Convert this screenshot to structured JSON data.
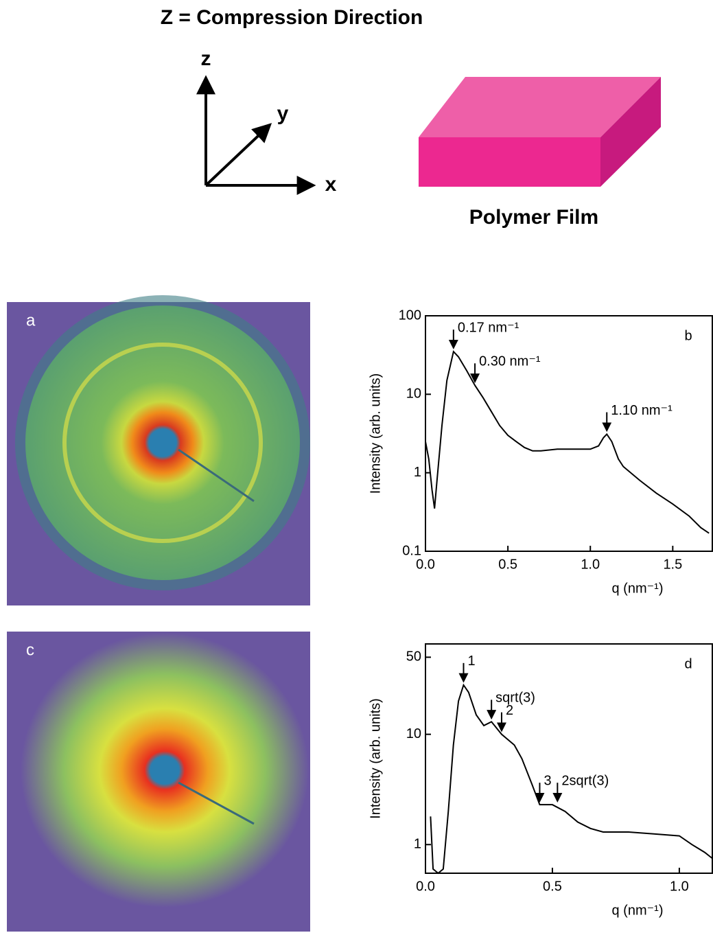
{
  "header": {
    "title": "Z = Compression Direction",
    "axis_z": "z",
    "axis_y": "y",
    "axis_x": "x",
    "film_label": "Polymer Film"
  },
  "images": [
    {
      "label": "a"
    },
    {
      "label": "c"
    }
  ],
  "chart_data": [
    {
      "type": "line",
      "panel": "b",
      "y_label": "Intensity (arb. units)",
      "x_label": "q (nm⁻¹)",
      "log_y": true,
      "color": "#000000",
      "x": [
        0,
        0.02,
        0.04,
        0.055,
        0.07,
        0.1,
        0.13,
        0.17,
        0.2,
        0.25,
        0.3,
        0.35,
        0.4,
        0.45,
        0.5,
        0.55,
        0.6,
        0.65,
        0.7,
        0.8,
        0.9,
        1.0,
        1.05,
        1.08,
        1.1,
        1.13,
        1.17,
        1.2,
        1.3,
        1.4,
        1.5,
        1.6,
        1.67,
        1.72
      ],
      "values": [
        2.5,
        1.5,
        0.6,
        0.35,
        0.8,
        4,
        15,
        35,
        30,
        20,
        13,
        9,
        6,
        4,
        3,
        2.5,
        2.1,
        1.9,
        1.9,
        2.0,
        2.0,
        2.0,
        2.2,
        2.8,
        3.1,
        2.5,
        1.5,
        1.2,
        0.8,
        0.55,
        0.4,
        0.28,
        0.2,
        0.17
      ],
      "xlim": [
        0,
        1.74
      ],
      "ylim": [
        0.1,
        100
      ],
      "xticks": [
        {
          "value": 0,
          "label": "0.0"
        },
        0.5,
        {
          "value": 1,
          "label": "1.0"
        },
        1.5
      ],
      "yticks": [
        0.1,
        1,
        10,
        100
      ],
      "annotations": [
        {
          "text": "0.17 nm⁻¹",
          "x": 0.17,
          "y": 35
        },
        {
          "text": "0.30 nm⁻¹",
          "x": 0.3,
          "y": 13
        },
        {
          "text": "1.10 nm⁻¹",
          "x": 1.1,
          "y": 3.1
        }
      ]
    },
    {
      "type": "line",
      "panel": "d",
      "y_label": "Intensity (arb. units)",
      "x_label": "q (nm⁻¹)",
      "log_y": true,
      "color": "#000000",
      "x": [
        0.02,
        0.03,
        0.05,
        0.07,
        0.09,
        0.11,
        0.13,
        0.15,
        0.17,
        0.2,
        0.23,
        0.26,
        0.3,
        0.35,
        0.38,
        0.42,
        0.45,
        0.5,
        0.55,
        0.6,
        0.65,
        0.7,
        0.8,
        0.9,
        1.0,
        1.05,
        1.1,
        1.13
      ],
      "values": [
        1.8,
        0.6,
        0.55,
        0.6,
        2,
        8,
        20,
        28,
        24,
        15,
        12,
        13,
        10,
        8,
        6,
        3.5,
        2.3,
        2.3,
        2.0,
        1.6,
        1.4,
        1.3,
        1.3,
        1.25,
        1.2,
        1.0,
        0.85,
        0.75
      ],
      "xlim": [
        0,
        1.13
      ],
      "ylim": [
        0.55,
        66
      ],
      "xticks": [
        {
          "value": 0,
          "label": "0.0"
        },
        0.5,
        {
          "value": 1,
          "label": "1.0"
        }
      ],
      "yticks": [
        1,
        10,
        50
      ],
      "annotations": [
        {
          "text": "1",
          "x": 0.15,
          "y": 28
        },
        {
          "text": "sqrt(3)",
          "x": 0.26,
          "y": 13
        },
        {
          "text": "2",
          "x": 0.3,
          "y": 10
        },
        {
          "text": "3",
          "x": 0.45,
          "y": 2.3
        },
        {
          "text": "2sqrt(3)",
          "x": 0.52,
          "y": 2.3
        }
      ]
    }
  ]
}
